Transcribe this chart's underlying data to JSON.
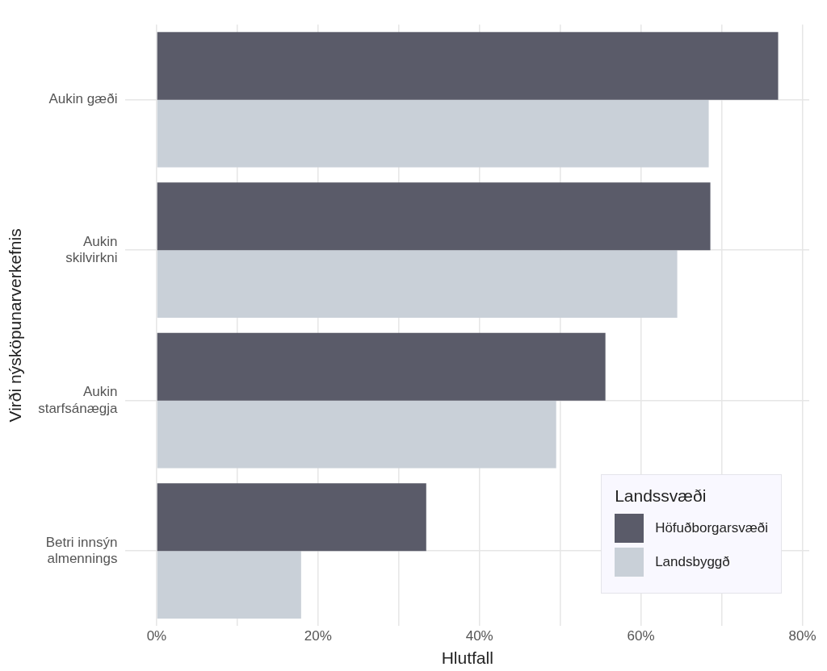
{
  "chart_data": {
    "type": "bar",
    "orientation": "horizontal",
    "xlabel": "Hlutfall",
    "ylabel": "Virði nýsköpunarverkefnis",
    "legend_title": "Landssvæði",
    "legend": "bottom right",
    "grid": true,
    "categories": [
      "Aukin gæði",
      "Aukin skilvirkni",
      "Aukin starfsánægja",
      "Betri innsýn almennings"
    ],
    "series": [
      {
        "name": "Höfuðborgarsvæði",
        "color": "#5a5b69",
        "values": [
          77.0,
          68.6,
          55.6,
          33.4
        ]
      },
      {
        "name": "Landsbyggð",
        "color": "#c9d0d8",
        "values": [
          68.4,
          64.5,
          49.5,
          17.9
        ]
      }
    ],
    "xlim": [
      -3.85,
      80.85
    ],
    "xticks": [
      {
        "value": 0,
        "label": "0%"
      },
      {
        "value": 10,
        "label": null
      },
      {
        "value": 20,
        "label": "20%"
      },
      {
        "value": 30,
        "label": null
      },
      {
        "value": 40,
        "label": "40%"
      },
      {
        "value": 50,
        "label": null
      },
      {
        "value": 60,
        "label": "60%"
      },
      {
        "value": 70,
        "label": null
      },
      {
        "value": 80,
        "label": "80%"
      }
    ]
  }
}
